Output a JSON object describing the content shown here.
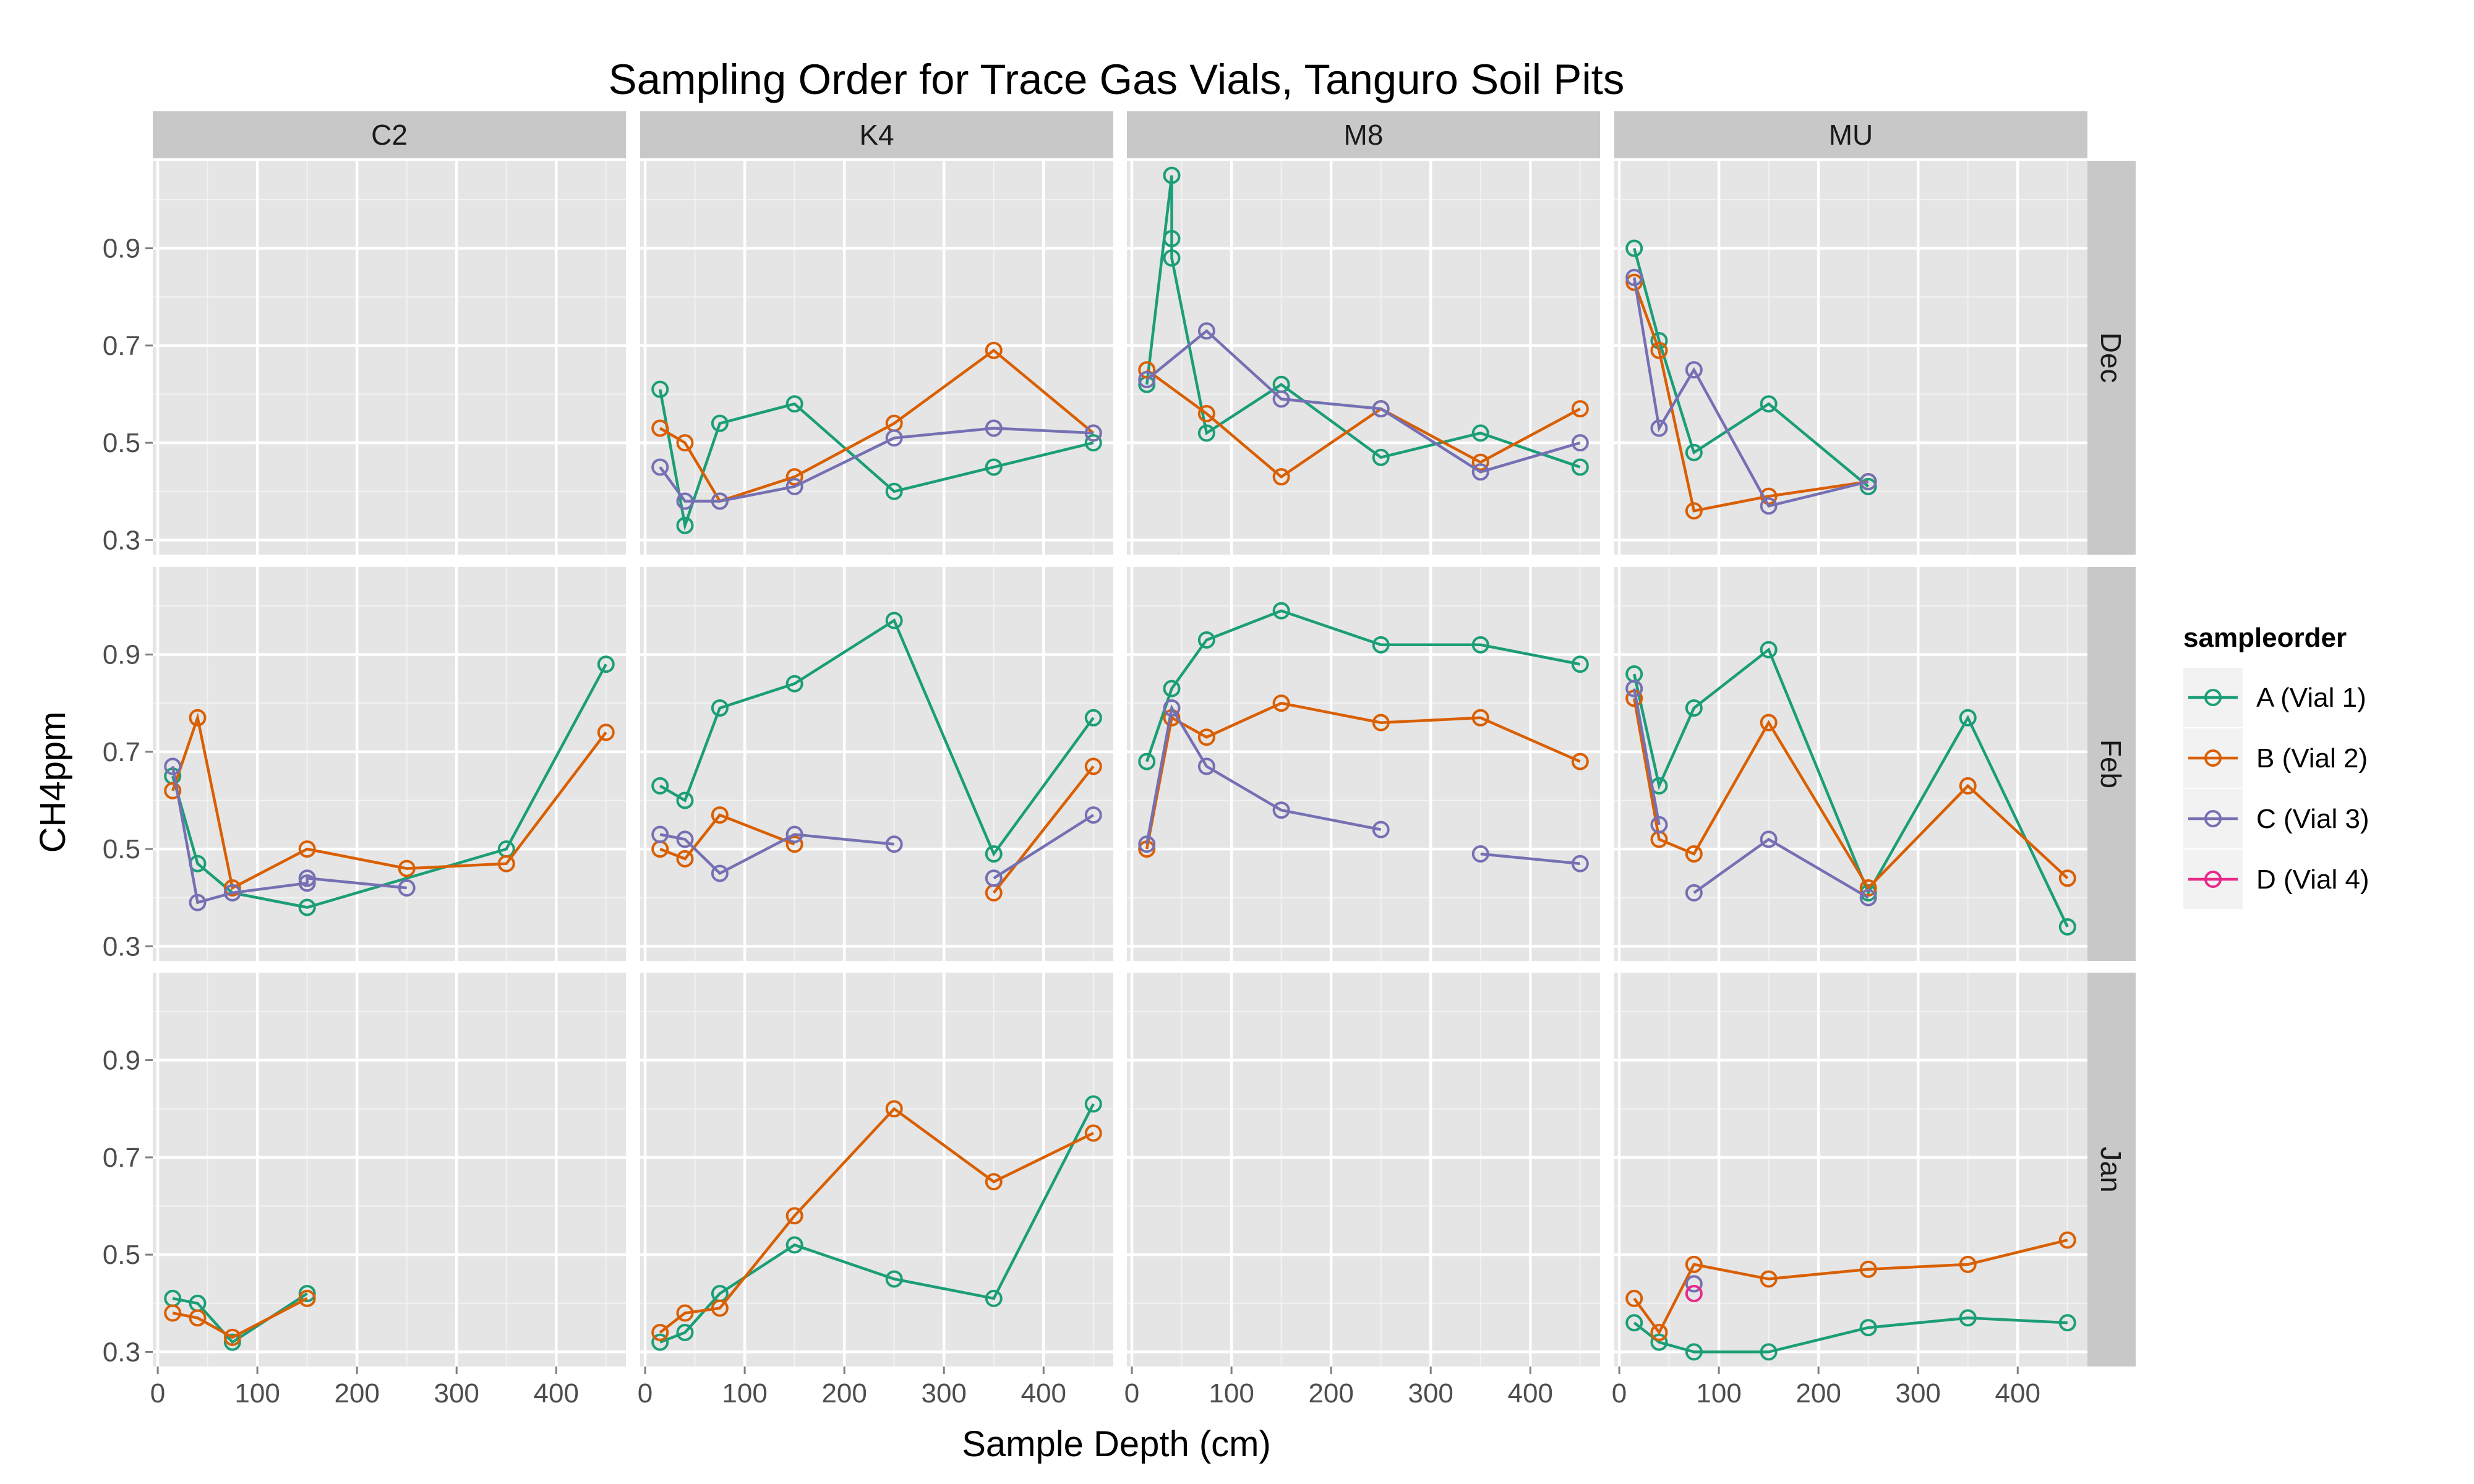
{
  "chart_data": {
    "type": "line",
    "title": "Sampling Order for Trace Gas Vials, Tanguro Soil Pits",
    "xlabel": "Sample Depth (cm)",
    "ylabel": "CH4ppm",
    "xlim": [
      -5,
      470
    ],
    "ylim": [
      0.27,
      1.08
    ],
    "xticks": [
      0,
      100,
      200,
      300,
      400
    ],
    "yticks": [
      0.3,
      0.5,
      0.7,
      0.9
    ],
    "grid": true,
    "marker": "open-circle",
    "legend": {
      "title": "sampleorder",
      "position": "right",
      "entries": [
        {
          "key": "A",
          "label": "A (Vial 1)",
          "color": "#1b9e77"
        },
        {
          "key": "B",
          "label": "B (Vial 2)",
          "color": "#d95f02"
        },
        {
          "key": "C",
          "label": "C (Vial 3)",
          "color": "#7570b3"
        },
        {
          "key": "D",
          "label": "D (Vial 4)",
          "color": "#e7298a"
        }
      ]
    },
    "columns": [
      "C2",
      "K4",
      "M8",
      "MU"
    ],
    "rows": [
      "Dec",
      "Feb",
      "Jan"
    ],
    "panels": [
      {
        "col": "C2",
        "row": "Dec",
        "series": []
      },
      {
        "col": "K4",
        "row": "Dec",
        "series": [
          {
            "key": "A",
            "x": [
              15,
              40,
              75,
              150,
              250,
              350,
              450
            ],
            "y": [
              0.61,
              0.33,
              0.54,
              0.58,
              0.4,
              0.45,
              0.5
            ]
          },
          {
            "key": "B",
            "x": [
              15,
              40,
              75,
              150,
              250,
              350,
              450
            ],
            "y": [
              0.53,
              0.5,
              0.38,
              0.43,
              0.54,
              0.69,
              0.52
            ]
          },
          {
            "key": "C",
            "x": [
              15,
              40,
              75,
              150,
              250,
              350,
              450
            ],
            "y": [
              0.45,
              0.38,
              0.38,
              0.41,
              0.51,
              0.53,
              0.52
            ]
          }
        ]
      },
      {
        "col": "M8",
        "row": "Dec",
        "series": [
          {
            "key": "A",
            "x": [
              15,
              40,
              40,
              40,
              75,
              150,
              250,
              350,
              450
            ],
            "y": [
              0.62,
              1.05,
              0.92,
              0.88,
              0.52,
              0.62,
              0.47,
              0.52,
              0.45
            ]
          },
          {
            "key": "B",
            "x": [
              15,
              75,
              150,
              250,
              350,
              450
            ],
            "y": [
              0.65,
              0.56,
              0.43,
              0.57,
              0.46,
              0.57
            ]
          },
          {
            "key": "C",
            "x": [
              15,
              75,
              150,
              250,
              350,
              450
            ],
            "y": [
              0.63,
              0.73,
              0.59,
              0.57,
              0.44,
              0.5
            ]
          }
        ]
      },
      {
        "col": "MU",
        "row": "Dec",
        "series": [
          {
            "key": "A",
            "x": [
              15,
              40,
              75,
              150,
              250
            ],
            "y": [
              0.9,
              0.71,
              0.48,
              0.58,
              0.41
            ]
          },
          {
            "key": "B",
            "x": [
              15,
              40,
              75,
              150,
              250
            ],
            "y": [
              0.83,
              0.69,
              0.36,
              0.39,
              0.42
            ]
          },
          {
            "key": "C",
            "x": [
              15,
              40,
              75,
              150,
              250
            ],
            "y": [
              0.84,
              0.53,
              0.65,
              0.37,
              0.42
            ]
          }
        ]
      },
      {
        "col": "C2",
        "row": "Feb",
        "series": [
          {
            "key": "A",
            "x": [
              15,
              40,
              75,
              150,
              350,
              450
            ],
            "y": [
              0.65,
              0.47,
              0.41,
              0.38,
              0.5,
              0.88
            ]
          },
          {
            "key": "B",
            "x": [
              15,
              40,
              75,
              150,
              250,
              350,
              450
            ],
            "y": [
              0.62,
              0.77,
              0.42,
              0.5,
              0.46,
              0.47,
              0.74
            ]
          },
          {
            "key": "C",
            "x": [
              15,
              40,
              75,
              150,
              150,
              250
            ],
            "y": [
              0.67,
              0.39,
              0.41,
              0.43,
              0.44,
              0.42
            ]
          }
        ]
      },
      {
        "col": "K4",
        "row": "Feb",
        "series": [
          {
            "key": "A",
            "x": [
              15,
              40,
              75,
              150,
              250,
              350,
              450
            ],
            "y": [
              0.63,
              0.6,
              0.79,
              0.84,
              0.97,
              0.49,
              0.77
            ]
          },
          {
            "key": "B",
            "x": [
              15,
              40,
              75,
              150
            ],
            "y": [
              0.5,
              0.48,
              0.57,
              0.51
            ]
          },
          {
            "key": "B",
            "x": [
              350,
              450
            ],
            "y": [
              0.41,
              0.67
            ]
          },
          {
            "key": "C",
            "x": [
              15,
              40,
              75,
              150,
              250
            ],
            "y": [
              0.53,
              0.52,
              0.45,
              0.53,
              0.51
            ]
          },
          {
            "key": "C",
            "x": [
              350,
              450
            ],
            "y": [
              0.44,
              0.57
            ]
          }
        ]
      },
      {
        "col": "M8",
        "row": "Feb",
        "series": [
          {
            "key": "A",
            "x": [
              15,
              40,
              75,
              150,
              250,
              350,
              450
            ],
            "y": [
              0.68,
              0.83,
              0.93,
              0.99,
              0.92,
              0.92,
              0.88
            ]
          },
          {
            "key": "B",
            "x": [
              15,
              40,
              75,
              150,
              250,
              350,
              450
            ],
            "y": [
              0.5,
              0.77,
              0.73,
              0.8,
              0.76,
              0.77,
              0.68
            ]
          },
          {
            "key": "C",
            "x": [
              15,
              40,
              75,
              150,
              250
            ],
            "y": [
              0.51,
              0.79,
              0.67,
              0.58,
              0.54
            ]
          },
          {
            "key": "C",
            "x": [
              350,
              450
            ],
            "y": [
              0.49,
              0.47
            ]
          }
        ]
      },
      {
        "col": "MU",
        "row": "Feb",
        "series": [
          {
            "key": "A",
            "x": [
              15,
              40,
              75,
              150,
              250,
              350,
              450
            ],
            "y": [
              0.86,
              0.63,
              0.79,
              0.91,
              0.41,
              0.77,
              0.34
            ]
          },
          {
            "key": "B",
            "x": [
              15,
              40,
              75,
              150,
              250,
              350,
              450
            ],
            "y": [
              0.81,
              0.52,
              0.49,
              0.76,
              0.42,
              0.63,
              0.44
            ]
          },
          {
            "key": "C",
            "x": [
              15,
              40
            ],
            "y": [
              0.83,
              0.55
            ]
          },
          {
            "key": "C",
            "x": [
              75,
              150,
              250
            ],
            "y": [
              0.41,
              0.52,
              0.4
            ]
          }
        ]
      },
      {
        "col": "C2",
        "row": "Jan",
        "series": [
          {
            "key": "A",
            "x": [
              15,
              40,
              75,
              150
            ],
            "y": [
              0.41,
              0.4,
              0.32,
              0.42
            ]
          },
          {
            "key": "B",
            "x": [
              15,
              40,
              75,
              150
            ],
            "y": [
              0.38,
              0.37,
              0.33,
              0.41
            ]
          }
        ]
      },
      {
        "col": "K4",
        "row": "Jan",
        "series": [
          {
            "key": "A",
            "x": [
              15,
              40,
              75,
              150,
              250,
              350,
              450
            ],
            "y": [
              0.32,
              0.34,
              0.42,
              0.52,
              0.45,
              0.41,
              0.81
            ]
          },
          {
            "key": "B",
            "x": [
              15,
              40,
              75,
              150,
              250,
              350,
              450
            ],
            "y": [
              0.34,
              0.38,
              0.39,
              0.58,
              0.8,
              0.65,
              0.75
            ]
          }
        ]
      },
      {
        "col": "M8",
        "row": "Jan",
        "series": []
      },
      {
        "col": "MU",
        "row": "Jan",
        "series": [
          {
            "key": "A",
            "x": [
              15,
              40,
              75,
              150,
              250,
              350,
              450
            ],
            "y": [
              0.36,
              0.32,
              0.3,
              0.3,
              0.35,
              0.37,
              0.36
            ]
          },
          {
            "key": "B",
            "x": [
              15,
              40,
              75,
              150,
              250,
              350,
              450
            ],
            "y": [
              0.41,
              0.34,
              0.48,
              0.45,
              0.47,
              0.48,
              0.53
            ]
          },
          {
            "key": "C",
            "x": [
              75
            ],
            "y": [
              0.44
            ]
          },
          {
            "key": "D",
            "x": [
              75
            ],
            "y": [
              0.42
            ]
          }
        ]
      }
    ]
  }
}
